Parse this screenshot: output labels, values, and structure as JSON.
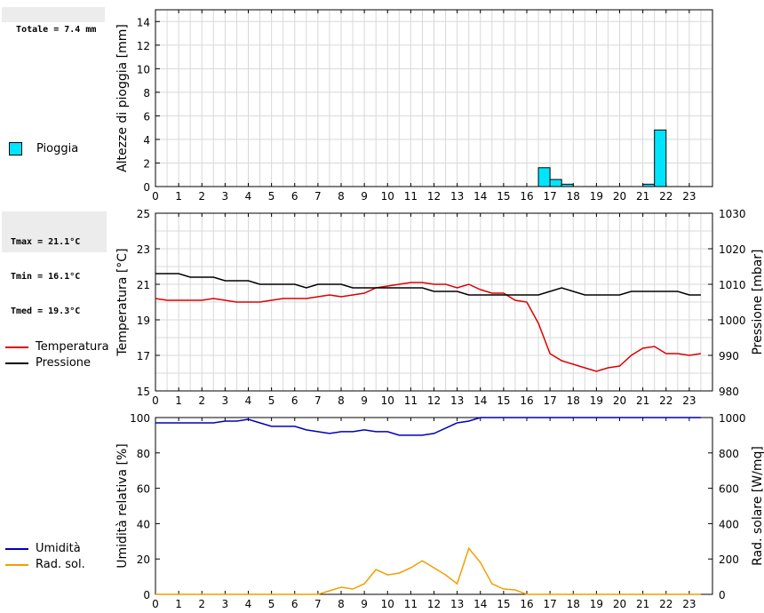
{
  "summary": {
    "total": "Totale = 7.4 mm",
    "tmax": "Tmax = 21.1°C",
    "tmin": "Tmin = 16.1°C",
    "tmed": "Tmed = 19.3°C"
  },
  "colors": {
    "rain": "#00e5ff",
    "temperature": "#dd0000",
    "pressure": "#000000",
    "humidity": "#0000bb",
    "radiation": "#f0a000"
  },
  "legend": {
    "rain": "Pioggia",
    "temperature": "Temperatura",
    "pressure": "Pressione",
    "humidity": "Umidità",
    "radiation": "Rad. sol."
  },
  "chart_data": [
    {
      "type": "bar",
      "x_ticks": [
        "0",
        "1",
        "2",
        "3",
        "4",
        "5",
        "6",
        "7",
        "8",
        "9",
        "10",
        "11",
        "12",
        "13",
        "14",
        "15",
        "16",
        "17",
        "18",
        "19",
        "20",
        "21",
        "22",
        "23"
      ],
      "ylabel": "Altezze di pioggia [mm]",
      "ylim": [
        0,
        15
      ],
      "y_ticks": [
        0,
        2,
        4,
        6,
        8,
        10,
        12,
        14
      ],
      "grid": true,
      "series": [
        {
          "name": "Pioggia",
          "bar_width": 0.5,
          "bars": [
            {
              "x": 16.75,
              "value": 1.6
            },
            {
              "x": 17.25,
              "value": 0.6
            },
            {
              "x": 17.75,
              "value": 0.2
            },
            {
              "x": 21.25,
              "value": 0.2
            },
            {
              "x": 21.75,
              "value": 4.8
            }
          ]
        }
      ]
    },
    {
      "type": "line",
      "x_ticks": [
        "0",
        "1",
        "2",
        "3",
        "4",
        "5",
        "6",
        "7",
        "8",
        "9",
        "10",
        "11",
        "12",
        "13",
        "14",
        "15",
        "16",
        "17",
        "18",
        "19",
        "20",
        "21",
        "22",
        "23"
      ],
      "ylabel": "Temperatura [°C]",
      "ylim": [
        15,
        25
      ],
      "y_ticks": [
        15,
        17,
        19,
        21,
        23,
        25
      ],
      "y2label": "Pressione [mbar]",
      "y2lim": [
        980,
        1030
      ],
      "y2_ticks": [
        980,
        990,
        1000,
        1010,
        1020,
        1030
      ],
      "grid": true,
      "series": [
        {
          "name": "Temperatura",
          "axis": "left",
          "x": [
            0,
            0.5,
            1,
            1.5,
            2,
            2.5,
            3,
            3.5,
            4,
            4.5,
            5,
            5.5,
            6,
            6.5,
            7,
            7.5,
            8,
            8.5,
            9,
            9.5,
            10,
            10.5,
            11,
            11.5,
            12,
            12.5,
            13,
            13.5,
            14,
            14.5,
            15,
            15.5,
            16,
            16.5,
            17,
            17.5,
            18,
            18.5,
            19,
            19.5,
            20,
            20.5,
            21,
            21.5,
            22,
            22.5,
            23,
            23.5
          ],
          "y": [
            20.2,
            20.1,
            20.1,
            20.1,
            20.1,
            20.2,
            20.1,
            20.0,
            20.0,
            20.0,
            20.1,
            20.2,
            20.2,
            20.2,
            20.3,
            20.4,
            20.3,
            20.4,
            20.5,
            20.8,
            20.9,
            21.0,
            21.1,
            21.1,
            21.0,
            21.0,
            20.8,
            21.0,
            20.7,
            20.5,
            20.5,
            20.1,
            20.0,
            18.8,
            17.1,
            16.7,
            16.5,
            16.3,
            16.1,
            16.3,
            16.4,
            17.0,
            17.4,
            17.5,
            17.1,
            17.1,
            17.0,
            17.1
          ]
        },
        {
          "name": "Pressione",
          "axis": "right",
          "x": [
            0,
            0.5,
            1,
            1.5,
            2,
            2.5,
            3,
            3.5,
            4,
            4.5,
            5,
            5.5,
            6,
            6.5,
            7,
            7.5,
            8,
            8.5,
            9,
            9.5,
            10,
            10.5,
            11,
            11.5,
            12,
            12.5,
            13,
            13.5,
            14,
            14.5,
            15,
            15.5,
            16,
            16.5,
            17,
            17.5,
            18,
            18.5,
            19,
            19.5,
            20,
            20.5,
            21,
            21.5,
            22,
            22.5,
            23,
            23.5
          ],
          "y": [
            1013,
            1013,
            1013,
            1012,
            1012,
            1012,
            1011,
            1011,
            1011,
            1010,
            1010,
            1010,
            1010,
            1009,
            1010,
            1010,
            1010,
            1009,
            1009,
            1009,
            1009,
            1009,
            1009,
            1009,
            1008,
            1008,
            1008,
            1007,
            1007,
            1007,
            1007,
            1007,
            1007,
            1007,
            1008,
            1009,
            1008,
            1007,
            1007,
            1007,
            1007,
            1008,
            1008,
            1008,
            1008,
            1008,
            1007,
            1007
          ]
        }
      ]
    },
    {
      "type": "line",
      "x_ticks": [
        "0",
        "1",
        "2",
        "3",
        "4",
        "5",
        "6",
        "7",
        "8",
        "9",
        "10",
        "11",
        "12",
        "13",
        "14",
        "15",
        "16",
        "17",
        "18",
        "19",
        "20",
        "21",
        "22",
        "23"
      ],
      "ylabel": "Umidità relativa [%]",
      "ylim": [
        0,
        100
      ],
      "y_ticks": [
        0,
        20,
        40,
        60,
        80,
        100
      ],
      "y2label": "Rad. solare [W/mq]",
      "y2lim": [
        0,
        1000
      ],
      "y2_ticks": [
        0,
        200,
        400,
        600,
        800,
        1000
      ],
      "grid": false,
      "series": [
        {
          "name": "Umidità",
          "axis": "left",
          "x": [
            0,
            0.5,
            1,
            1.5,
            2,
            2.5,
            3,
            3.5,
            4,
            4.5,
            5,
            5.5,
            6,
            6.5,
            7,
            7.5,
            8,
            8.5,
            9,
            9.5,
            10,
            10.5,
            11,
            11.5,
            12,
            12.5,
            13,
            13.5,
            14,
            14.5,
            15,
            16,
            17,
            18,
            19,
            20,
            21,
            22,
            23,
            23.5
          ],
          "y": [
            97,
            97,
            97,
            97,
            97,
            97,
            98,
            98,
            99,
            97,
            95,
            95,
            95,
            93,
            92,
            91,
            92,
            92,
            93,
            92,
            92,
            90,
            90,
            90,
            91,
            94,
            97,
            98,
            100,
            100,
            100,
            100,
            100,
            100,
            100,
            100,
            100,
            100,
            100,
            100
          ]
        },
        {
          "name": "Rad. sol.",
          "axis": "right",
          "x": [
            0,
            1,
            2,
            3,
            4,
            5,
            6,
            7,
            7.5,
            8,
            8.5,
            9,
            9.5,
            10,
            10.5,
            11,
            11.5,
            12,
            12.5,
            13,
            13.5,
            14,
            14.5,
            15,
            15.5,
            16,
            17,
            18,
            19,
            20,
            21,
            22,
            23,
            23.5
          ],
          "y": [
            0,
            0,
            0,
            0,
            0,
            0,
            0,
            0,
            20,
            40,
            30,
            60,
            140,
            110,
            120,
            150,
            190,
            150,
            110,
            60,
            260,
            180,
            60,
            30,
            25,
            0,
            0,
            0,
            0,
            0,
            0,
            0,
            0,
            0
          ]
        }
      ]
    }
  ]
}
